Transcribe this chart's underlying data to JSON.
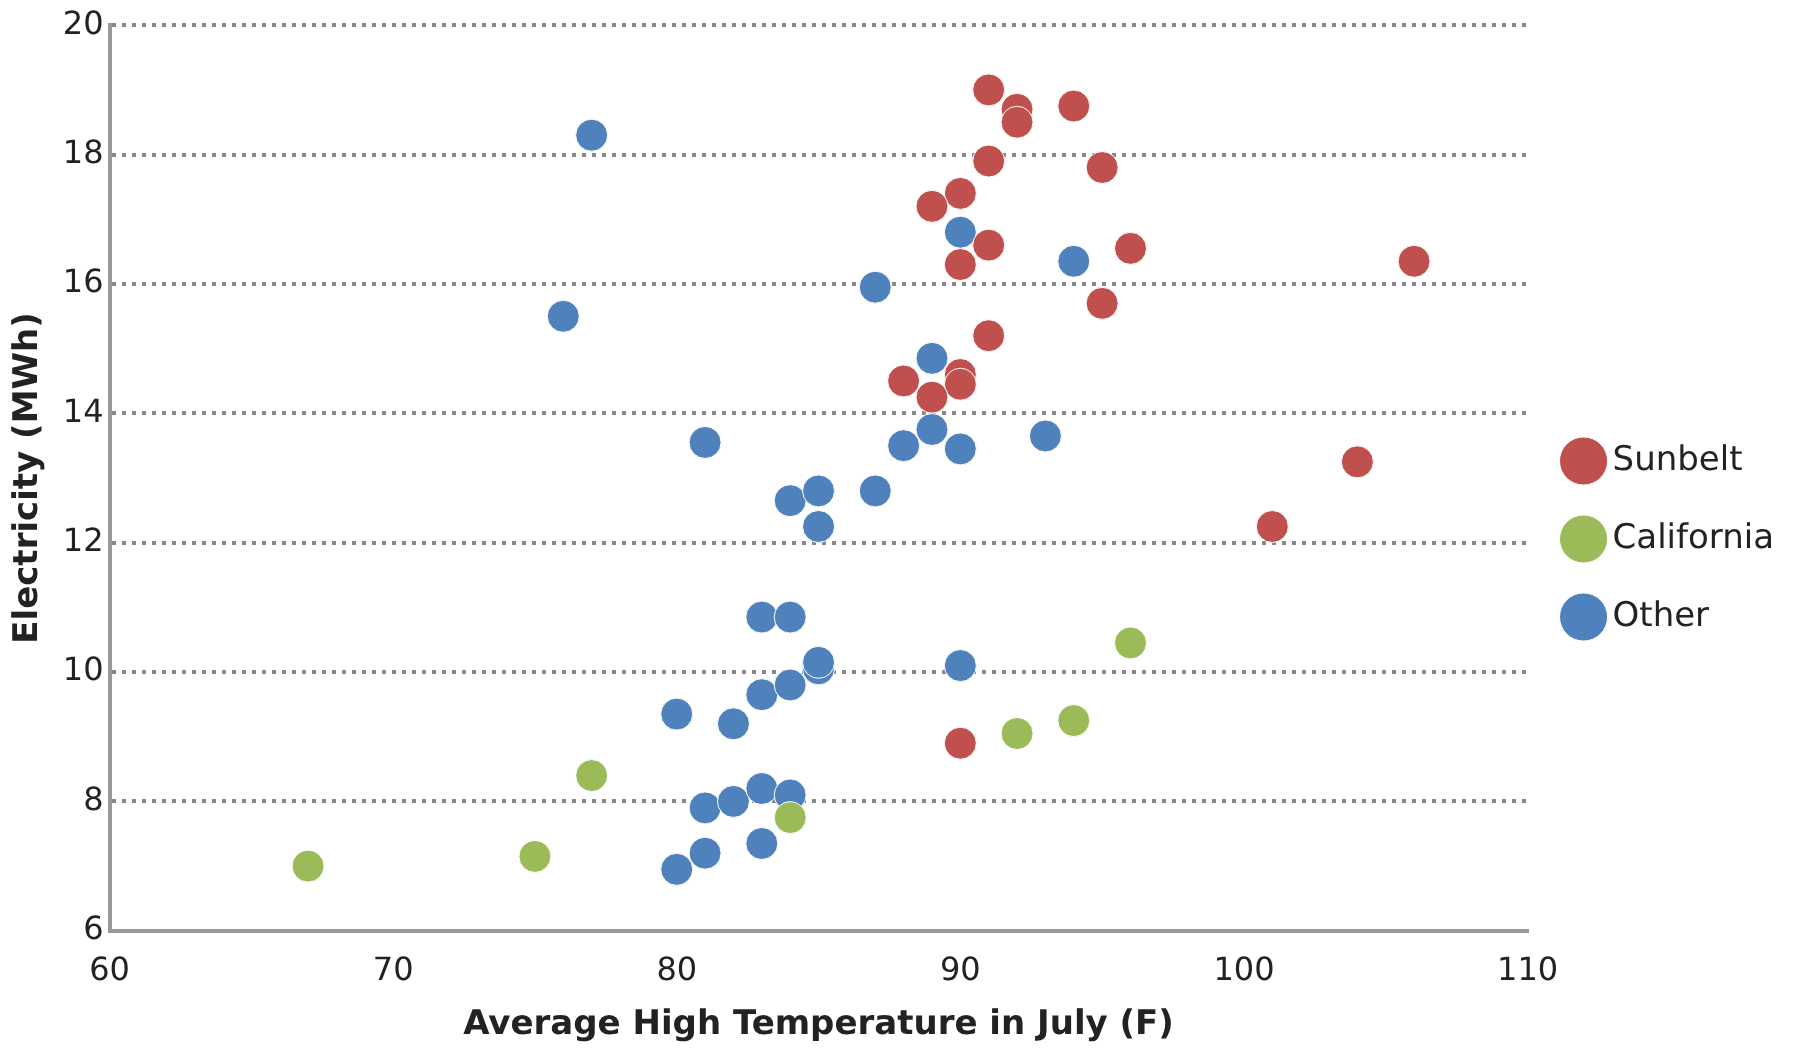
{
  "chart_data": {
    "type": "scatter",
    "xlabel": "Average High Temperature in July (F)",
    "ylabel": "Electricity (MWh)",
    "xlim": [
      60,
      110
    ],
    "xticks": [
      60,
      70,
      80,
      90,
      100,
      110
    ],
    "ylim": [
      6,
      20
    ],
    "yticks": [
      6,
      8,
      10,
      12,
      14,
      16,
      18,
      20
    ],
    "grid": "y",
    "legend": "right",
    "marker": "circle",
    "series": [
      {
        "name": "Sunbelt",
        "color": "#c0504d",
        "x": [
          91,
          92,
          92,
          94,
          91,
          95,
          90,
          89,
          91,
          96,
          90,
          106,
          95,
          91,
          88,
          90,
          90,
          89,
          104,
          101,
          90
        ],
        "values": [
          19.0,
          18.7,
          18.5,
          18.75,
          17.9,
          17.8,
          17.4,
          17.2,
          16.6,
          16.55,
          16.3,
          16.35,
          15.7,
          15.2,
          14.5,
          14.6,
          14.45,
          14.25,
          13.25,
          12.25,
          8.9
        ]
      },
      {
        "name": "California",
        "color": "#9bbb59",
        "x": [
          67,
          75,
          77,
          84,
          92,
          94,
          96
        ],
        "values": [
          7.0,
          7.15,
          8.4,
          7.75,
          9.05,
          9.25,
          10.45
        ]
      },
      {
        "name": "Other",
        "color": "#4f81bd",
        "x": [
          77,
          76,
          87,
          90,
          94,
          89,
          81,
          88,
          89,
          90,
          93,
          84,
          85,
          87,
          85,
          83,
          84,
          85,
          85,
          90,
          80,
          82,
          83,
          84,
          81,
          82,
          83,
          84,
          81,
          80,
          83
        ],
        "values": [
          18.3,
          15.5,
          15.95,
          16.8,
          16.35,
          14.85,
          13.55,
          13.5,
          13.75,
          13.45,
          13.65,
          12.65,
          12.8,
          12.8,
          12.25,
          10.85,
          10.85,
          10.05,
          10.15,
          10.1,
          9.35,
          9.2,
          9.65,
          9.8,
          7.9,
          8.0,
          8.2,
          8.1,
          7.2,
          6.95,
          7.35
        ]
      }
    ]
  }
}
